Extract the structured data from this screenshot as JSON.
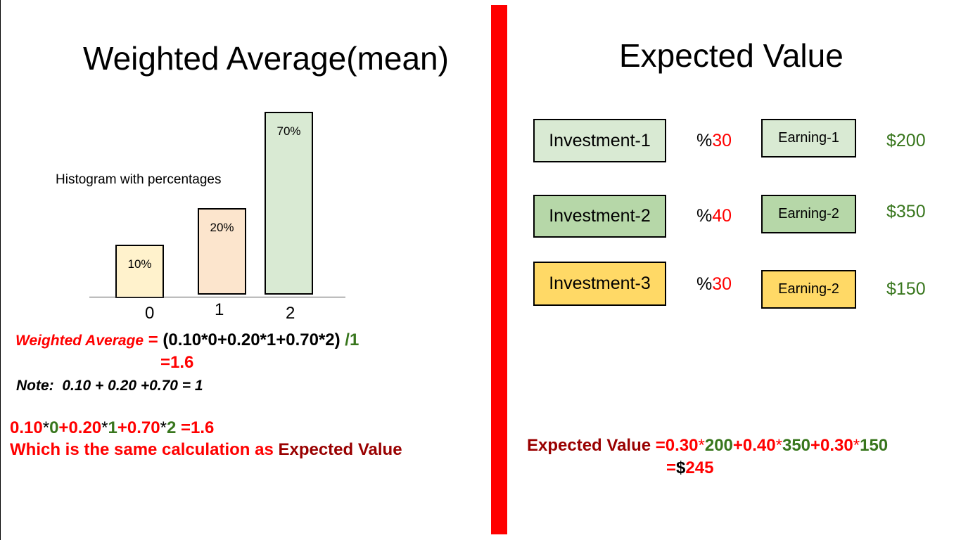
{
  "left": {
    "title": "Weighted Average(mean)",
    "histogram_label": "Histogram with percentages",
    "bars": [
      {
        "category": "0",
        "label": "10%",
        "value": 10,
        "color": "#fff2cc"
      },
      {
        "category": "1",
        "label": "20%",
        "value": 20,
        "color": "#fce5cd"
      },
      {
        "category": "2",
        "label": "70%",
        "value": 70,
        "color": "#d9ead3"
      }
    ],
    "formula": {
      "label": "Weighted Average",
      "eq": " = ",
      "expr": "(0.10*0+0.20*1+0.70*2)",
      "divisor": " /1",
      "result": "=1.6"
    },
    "note": "Note:  0.10 + 0.20 +0.70 = 1",
    "calc": {
      "p1": "0.10",
      "s1": "*",
      "v1": "0",
      "plus1": "+",
      "p2": "0.20",
      "s2": "*",
      "v2": "1",
      "plus2": "+",
      "p3": "0.70",
      "s3": "*",
      "v3": "2",
      "result": " =1.6"
    },
    "same_text": "Which is the same calculation as ",
    "same_link": "Expected Value"
  },
  "right": {
    "title": "Expected Value",
    "rows": [
      {
        "investment": "Investment-1",
        "pct_sign": "%",
        "pct": "30",
        "earning": "Earning-1",
        "cur": "$",
        "amount": "200",
        "inv_color": "#d9ead3",
        "earn_color": "#d9ead3"
      },
      {
        "investment": "Investment-2",
        "pct_sign": "%",
        "pct": "40",
        "earning": "Earning-2",
        "cur": "$",
        "amount": "350",
        "inv_color": "#b6d7a8",
        "earn_color": "#b6d7a8"
      },
      {
        "investment": "Investment-3",
        "pct_sign": "%",
        "pct": "30",
        "earning": "Earning-2",
        "cur": "$",
        "amount": "150",
        "inv_color": "#ffd966",
        "earn_color": "#ffd966"
      }
    ],
    "ev": {
      "label": "Expected Value ",
      "eq": "=",
      "p1": "0.30",
      "s1": "*",
      "a1": "200",
      "plus1": "+",
      "p2": "0.40",
      "s2": "*",
      "a2": "350",
      "plus2": "+",
      "p3": "0.30",
      "s3": "*",
      "a3": "150",
      "res_eq": "=",
      "res_cur": "$",
      "res_val": "245"
    }
  },
  "colors": {
    "divider": "#ff0000",
    "red": "#ff0000",
    "green": "#38761d",
    "brown": "#990000"
  }
}
